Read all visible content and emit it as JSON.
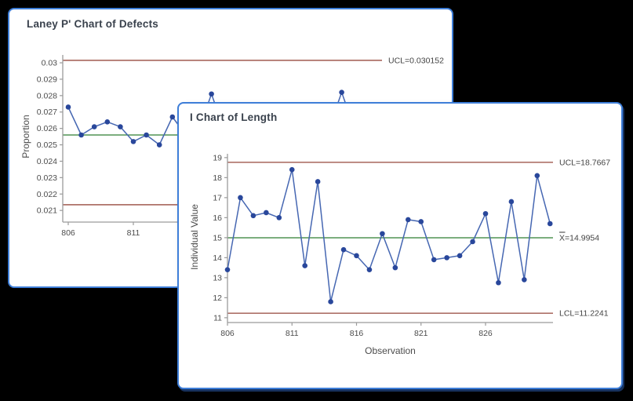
{
  "page": {
    "background_color": "#000000"
  },
  "accent_colors": {
    "window_border": "#3e7ed8",
    "window_bg": "#ffffff",
    "title_text": "#3a424d",
    "limit_line": "#ae7168",
    "center_line": "#2e7d32",
    "series_line": "#4667b2",
    "marker": "#29479b",
    "axis": "#9b9b9b",
    "tick_text": "#4c4c4c",
    "label_text": "#434343"
  },
  "windows": [
    {
      "title": "Laney P' Chart of Defects",
      "chart_data": {
        "type": "line",
        "subtype": "control-chart",
        "title": "Laney P' Chart of Defects",
        "ylabel": "Proportion",
        "xlabel": "",
        "grid": false,
        "legend": null,
        "yticks": [
          "0.03",
          "0.029",
          "0.028",
          "0.027",
          "0.026",
          "0.025",
          "0.024",
          "0.023",
          "0.022",
          "0.021"
        ],
        "xticks": [
          806,
          811
        ],
        "ylim": [
          0.02029,
          0.03048
        ],
        "x_start": 806,
        "x": [
          806,
          807,
          808,
          809,
          810,
          811,
          812,
          813,
          814
        ],
        "values": [
          0.0273,
          0.0256,
          0.0261,
          0.0264,
          0.0261,
          0.0252,
          0.0256,
          0.025,
          0.0267
        ],
        "center": 0.0256,
        "center_label": null,
        "center_label_overbar": false,
        "ucl": 0.030152,
        "ucl_label": "UCL=0.030152",
        "lcl": 0.02135,
        "lcl_label": null,
        "series_continues": true,
        "peek_points": [
          {
            "x": 817,
            "value": 0.0281
          },
          {
            "x": 827,
            "value": 0.0282
          }
        ]
      }
    },
    {
      "title": "I Chart of Length",
      "chart_data": {
        "type": "line",
        "subtype": "control-chart",
        "title": "I Chart of Length",
        "ylabel": "Individual Value",
        "xlabel": "Observation",
        "grid": false,
        "legend": null,
        "yticks": [
          "19",
          "18",
          "17",
          "16",
          "15",
          "14",
          "13",
          "12",
          "11"
        ],
        "xticks": [
          806,
          811,
          816,
          821,
          826
        ],
        "ylim": [
          10.76,
          19.19
        ],
        "x_start": 806,
        "x": [
          806,
          807,
          808,
          809,
          810,
          811,
          812,
          813,
          814,
          815,
          816,
          817,
          818,
          819,
          820,
          821,
          822,
          823,
          824,
          825,
          826,
          827,
          828,
          829,
          830,
          831
        ],
        "values": [
          13.4,
          17.0,
          16.1,
          16.25,
          16.0,
          18.4,
          13.6,
          17.8,
          11.8,
          14.4,
          14.1,
          13.4,
          15.2,
          13.5,
          15.9,
          15.8,
          13.9,
          14.0,
          14.1,
          14.8,
          16.2,
          12.75,
          16.8,
          12.9,
          18.1,
          15.7
        ],
        "center": 14.9954,
        "center_label": "X=14.9954",
        "center_label_overbar": true,
        "ucl": 18.7667,
        "ucl_label": "UCL=18.7667",
        "lcl": 11.2241,
        "lcl_label": "LCL=11.2241",
        "series_continues": false,
        "peek_points": []
      }
    }
  ]
}
